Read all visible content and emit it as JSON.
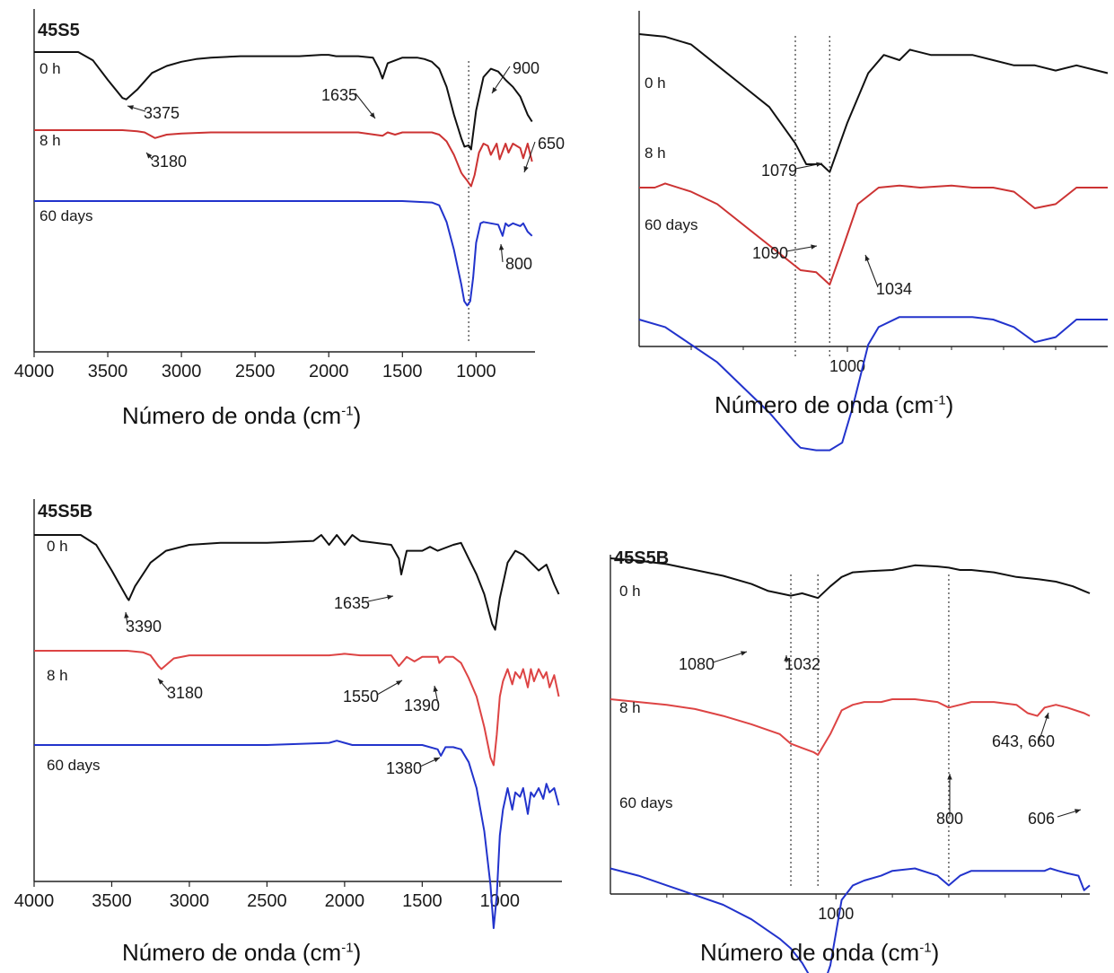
{
  "chart_data": [
    {
      "type": "line",
      "title": "45S5",
      "xlabel_main": "Número de onda (cm",
      "xlabel_sup": "-1",
      "xlabel_close": ")",
      "xlim": [
        4000,
        600
      ],
      "xticks": [
        "4000",
        "3500",
        "3000",
        "2500",
        "2000",
        "1500",
        "1000"
      ],
      "series": [
        {
          "name": "0 h",
          "color": "#111111",
          "x": [
            4000,
            3700,
            3600,
            3500,
            3400,
            3375,
            3300,
            3200,
            3100,
            3000,
            2900,
            2800,
            2600,
            2400,
            2200,
            2050,
            2000,
            1950,
            1800,
            1700,
            1660,
            1635,
            1600,
            1500,
            1400,
            1350,
            1300,
            1250,
            1200,
            1150,
            1100,
            1079,
            1050,
            1034,
            1000,
            950,
            900,
            850,
            800,
            750,
            700,
            650,
            620
          ],
          "y": [
            100,
            100,
            94,
            80,
            67,
            66,
            73,
            85,
            90,
            93,
            95,
            96,
            97,
            97,
            97,
            98,
            98,
            97,
            97,
            96,
            88,
            81,
            92,
            96,
            96,
            95,
            93,
            88,
            75,
            55,
            38,
            32,
            33,
            30,
            58,
            82,
            88,
            86,
            80,
            75,
            68,
            55,
            50
          ]
        },
        {
          "name": "8 h",
          "color": "#cc3333",
          "x": [
            4000,
            3400,
            3300,
            3250,
            3180,
            3100,
            3000,
            2800,
            2400,
            2000,
            1800,
            1635,
            1600,
            1550,
            1500,
            1300,
            1250,
            1200,
            1150,
            1100,
            1090,
            1060,
            1034,
            1010,
            980,
            950,
            920,
            900,
            860,
            840,
            800,
            780,
            750,
            700,
            680,
            650,
            620
          ],
          "y": [
            100,
            100,
            99,
            98,
            93,
            96,
            97,
            98,
            98,
            98,
            98,
            95,
            98,
            96,
            98,
            98,
            96,
            90,
            78,
            62,
            60,
            55,
            50,
            60,
            80,
            88,
            86,
            78,
            88,
            74,
            88,
            80,
            88,
            84,
            75,
            88,
            72
          ]
        },
        {
          "name": "60 days",
          "color": "#2233cc",
          "x": [
            4000,
            3000,
            2500,
            2000,
            1500,
            1300,
            1250,
            1200,
            1150,
            1100,
            1080,
            1060,
            1040,
            1020,
            1000,
            970,
            950,
            900,
            850,
            820,
            800,
            780,
            750,
            700,
            680,
            650,
            620
          ],
          "y": [
            100,
            100,
            100,
            100,
            100,
            99,
            97,
            85,
            65,
            40,
            28,
            25,
            28,
            45,
            70,
            84,
            85,
            84,
            83,
            75,
            84,
            82,
            84,
            82,
            84,
            78,
            75
          ]
        }
      ],
      "annotations": [
        {
          "text": "3375",
          "x": 3375,
          "series": "0 h"
        },
        {
          "text": "1635",
          "x": 1635,
          "series": "0 h"
        },
        {
          "text": "900",
          "x": 900,
          "series": "0 h"
        },
        {
          "text": "3180",
          "x": 3180,
          "series": "8 h"
        },
        {
          "text": "650",
          "x": 650,
          "series": "8 h"
        },
        {
          "text": "800",
          "x": 800,
          "series": "60 days"
        }
      ]
    },
    {
      "type": "line",
      "title": "",
      "xlabel_main": "Número de onda (cm",
      "xlabel_sup": "-1",
      "xlabel_close": ")",
      "xlim": [
        1400,
        500
      ],
      "xticks": [
        "1000"
      ],
      "series": [
        {
          "name": "0 h",
          "color": "#111111",
          "x": [
            1400,
            1350,
            1300,
            1250,
            1200,
            1150,
            1100,
            1079,
            1050,
            1034,
            1000,
            960,
            930,
            900,
            880,
            840,
            800,
            760,
            720,
            680,
            640,
            600,
            560,
            520,
            500
          ],
          "y": [
            100,
            99,
            96,
            88,
            80,
            72,
            58,
            50,
            50,
            47,
            66,
            85,
            92,
            90,
            94,
            92,
            92,
            92,
            90,
            88,
            88,
            86,
            88,
            86,
            85
          ]
        },
        {
          "name": "8 h",
          "color": "#cc3333",
          "x": [
            1400,
            1370,
            1350,
            1300,
            1250,
            1200,
            1150,
            1100,
            1090,
            1060,
            1034,
            1010,
            980,
            940,
            900,
            860,
            800,
            760,
            720,
            680,
            640,
            600,
            560,
            520,
            500
          ],
          "y": [
            70,
            70,
            72,
            68,
            62,
            52,
            42,
            32,
            30,
            29,
            23,
            40,
            62,
            70,
            71,
            70,
            71,
            70,
            70,
            68,
            60,
            62,
            70,
            70,
            70
          ]
        },
        {
          "name": "60 days",
          "color": "#2233cc",
          "x": [
            1400,
            1350,
            1300,
            1250,
            1200,
            1150,
            1100,
            1090,
            1060,
            1034,
            1010,
            990,
            960,
            940,
            900,
            860,
            800,
            760,
            720,
            680,
            640,
            600,
            560,
            520,
            500
          ],
          "y": [
            55,
            52,
            45,
            38,
            28,
            18,
            6,
            4,
            3,
            3,
            6,
            20,
            45,
            52,
            56,
            56,
            56,
            56,
            55,
            52,
            46,
            48,
            55,
            55,
            55
          ]
        }
      ],
      "annotations": [
        {
          "text": "1079",
          "x": 1079,
          "series": "0 h"
        },
        {
          "text": "1090",
          "x": 1090,
          "series": "8 h"
        },
        {
          "text": "1034",
          "x": 1034,
          "series": "8 h"
        }
      ]
    },
    {
      "type": "line",
      "title": "45S5B",
      "xlabel_main": "Número de onda (cm",
      "xlabel_sup": "-1",
      "xlabel_close": ")",
      "xlim": [
        4000,
        600
      ],
      "xticks": [
        "4000",
        "3500",
        "3000",
        "2500",
        "2000",
        "1500",
        "1000"
      ],
      "series": [
        {
          "name": "0 h",
          "color": "#111111",
          "x": [
            4000,
            3700,
            3600,
            3500,
            3400,
            3390,
            3350,
            3250,
            3150,
            3000,
            2800,
            2500,
            2200,
            2150,
            2100,
            2050,
            2000,
            1950,
            1900,
            1700,
            1650,
            1635,
            1600,
            1500,
            1450,
            1400,
            1300,
            1250,
            1200,
            1150,
            1100,
            1050,
            1030,
            1000,
            950,
            900,
            850,
            800,
            750,
            700,
            650,
            620
          ],
          "y": [
            100,
            100,
            95,
            82,
            68,
            67,
            74,
            86,
            92,
            95,
            96,
            96,
            97,
            100,
            95,
            100,
            95,
            100,
            97,
            95,
            88,
            80,
            92,
            92,
            94,
            92,
            95,
            96,
            88,
            80,
            70,
            55,
            52,
            68,
            86,
            92,
            90,
            86,
            82,
            85,
            75,
            70
          ]
        },
        {
          "name": "8 h",
          "color": "#dd4444",
          "x": [
            4000,
            3400,
            3300,
            3250,
            3200,
            3180,
            3100,
            3000,
            2900,
            2500,
            2100,
            2000,
            1900,
            1700,
            1650,
            1600,
            1550,
            1500,
            1400,
            1390,
            1350,
            1300,
            1250,
            1200,
            1150,
            1100,
            1060,
            1040,
            1020,
            1000,
            980,
            950,
            920,
            900,
            870,
            850,
            820,
            800,
            780,
            750,
            720,
            700,
            680,
            650,
            620
          ],
          "y": [
            100,
            100,
            99,
            97,
            90,
            88,
            95,
            97,
            97,
            97,
            97,
            98,
            97,
            97,
            90,
            96,
            93,
            96,
            96,
            92,
            96,
            96,
            92,
            82,
            70,
            50,
            30,
            25,
            45,
            70,
            80,
            88,
            78,
            86,
            82,
            88,
            76,
            88,
            80,
            88,
            82,
            86,
            76,
            84,
            70
          ]
        },
        {
          "name": "60 days",
          "color": "#2233cc",
          "x": [
            4000,
            3000,
            2500,
            2100,
            2050,
            2000,
            1950,
            1500,
            1400,
            1380,
            1350,
            1300,
            1250,
            1200,
            1150,
            1100,
            1060,
            1040,
            1020,
            1000,
            980,
            950,
            920,
            900,
            870,
            850,
            820,
            800,
            780,
            750,
            720,
            700,
            680,
            650,
            620
          ],
          "y": [
            100,
            100,
            100,
            101,
            102,
            101,
            100,
            100,
            98,
            95,
            99,
            99,
            98,
            92,
            80,
            60,
            35,
            15,
            30,
            58,
            70,
            80,
            70,
            78,
            76,
            80,
            68,
            78,
            76,
            80,
            75,
            82,
            78,
            80,
            72
          ]
        }
      ],
      "annotations": [
        {
          "text": "3390",
          "x": 3390,
          "series": "0 h"
        },
        {
          "text": "1635",
          "x": 1635,
          "series": "0 h"
        },
        {
          "text": "3180",
          "x": 3180,
          "series": "8 h"
        },
        {
          "text": "1550",
          "x": 1550,
          "series": "8 h"
        },
        {
          "text": "1390",
          "x": 1390,
          "series": "8 h"
        },
        {
          "text": "1380",
          "x": 1380,
          "series": "60 days"
        }
      ]
    },
    {
      "type": "line",
      "title": "45S5B",
      "xlabel_main": "Número de onda (cm",
      "xlabel_sup": "-1",
      "xlabel_close": ")",
      "xlim": [
        1400,
        550
      ],
      "xticks": [
        "1000"
      ],
      "series": [
        {
          "name": "0 h",
          "color": "#111111",
          "x": [
            1400,
            1350,
            1300,
            1250,
            1200,
            1150,
            1120,
            1080,
            1060,
            1032,
            1010,
            990,
            970,
            940,
            900,
            860,
            820,
            800,
            780,
            760,
            720,
            680,
            640,
            610,
            580,
            560,
            550
          ],
          "y": [
            100,
            98,
            95,
            90,
            85,
            78,
            72,
            68,
            70,
            66,
            76,
            84,
            88,
            89,
            90,
            94,
            93,
            92,
            90,
            90,
            88,
            84,
            82,
            80,
            76,
            72,
            70
          ]
        },
        {
          "name": "8 h",
          "color": "#dd4444",
          "x": [
            1400,
            1350,
            1300,
            1250,
            1200,
            1150,
            1100,
            1080,
            1060,
            1040,
            1032,
            1010,
            990,
            970,
            950,
            920,
            900,
            860,
            820,
            800,
            780,
            760,
            720,
            680,
            660,
            643,
            630,
            610,
            590,
            560,
            550
          ],
          "y": [
            80,
            78,
            76,
            73,
            68,
            62,
            55,
            48,
            45,
            42,
            40,
            55,
            72,
            76,
            78,
            78,
            80,
            80,
            78,
            74,
            76,
            78,
            78,
            76,
            70,
            68,
            74,
            76,
            74,
            70,
            68
          ]
        },
        {
          "name": "60 days",
          "color": "#2233cc",
          "x": [
            1400,
            1350,
            1300,
            1250,
            1200,
            1150,
            1100,
            1080,
            1060,
            1040,
            1032,
            1010,
            990,
            970,
            950,
            920,
            900,
            860,
            820,
            800,
            780,
            760,
            720,
            680,
            650,
            630,
            620,
            606,
            590,
            570,
            560,
            550
          ],
          "y": [
            55,
            52,
            48,
            44,
            40,
            34,
            26,
            22,
            16,
            8,
            0,
            15,
            42,
            48,
            50,
            52,
            54,
            55,
            52,
            48,
            52,
            54,
            54,
            54,
            54,
            54,
            55,
            54,
            53,
            52,
            46,
            48
          ]
        }
      ],
      "annotations": [
        {
          "text": "1080",
          "x": 1080,
          "series": "0 h"
        },
        {
          "text": "1032",
          "x": 1032,
          "series": "0 h"
        },
        {
          "text": "643, 660",
          "x": 650,
          "series": "8 h"
        },
        {
          "text": "800",
          "x": 800,
          "series": "60 days"
        },
        {
          "text": "606",
          "x": 606,
          "series": "60 days"
        }
      ]
    }
  ]
}
